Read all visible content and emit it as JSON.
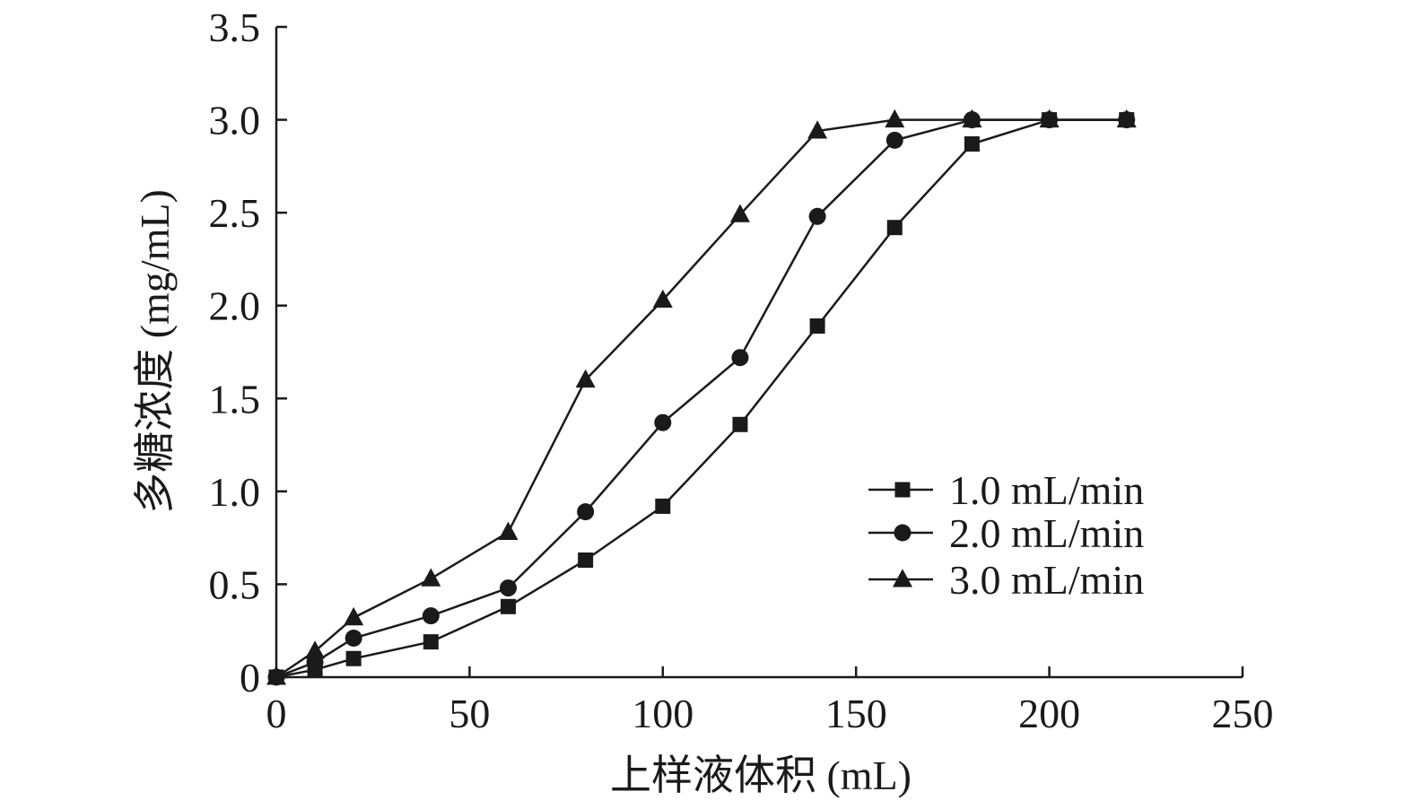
{
  "chart_data": {
    "type": "line",
    "title": "",
    "xlabel": "上样液体积 (mL)",
    "ylabel": "多糖浓度 (mg/mL)",
    "xlim": [
      0,
      250
    ],
    "ylim": [
      0,
      3.5
    ],
    "x_ticks": [
      0,
      50,
      100,
      150,
      200,
      250
    ],
    "y_ticks": [
      0,
      0.5,
      1.0,
      1.5,
      2.0,
      2.5,
      3.0,
      3.5
    ],
    "x_tick_labels": [
      "0",
      "50",
      "100",
      "150",
      "200",
      "250"
    ],
    "y_tick_labels": [
      "0",
      "0.5",
      "1.0",
      "1.5",
      "2.0",
      "2.5",
      "3.0",
      "3.5"
    ],
    "grid": false,
    "legend_position": "right",
    "series": [
      {
        "name": "1.0 mL/min",
        "marker": "square",
        "x": [
          0,
          10,
          20,
          40,
          60,
          80,
          100,
          120,
          140,
          160,
          180,
          200,
          220
        ],
        "y": [
          0,
          0.04,
          0.1,
          0.19,
          0.38,
          0.63,
          0.92,
          1.36,
          1.89,
          2.42,
          2.87,
          3.0,
          3.0
        ]
      },
      {
        "name": "2.0 mL/min",
        "marker": "circle",
        "x": [
          0,
          10,
          20,
          40,
          60,
          80,
          100,
          120,
          140,
          160,
          180,
          200,
          220
        ],
        "y": [
          0,
          0.08,
          0.21,
          0.33,
          0.48,
          0.89,
          1.37,
          1.72,
          2.48,
          2.89,
          3.0,
          3.0,
          3.0
        ]
      },
      {
        "name": "3.0 mL/min",
        "marker": "triangle",
        "x": [
          0,
          10,
          20,
          40,
          60,
          80,
          100,
          120,
          140,
          160,
          180,
          200,
          220
        ],
        "y": [
          0,
          0.14,
          0.32,
          0.53,
          0.78,
          1.6,
          2.03,
          2.49,
          2.94,
          3.0,
          3.0,
          3.0,
          3.0
        ]
      }
    ]
  }
}
